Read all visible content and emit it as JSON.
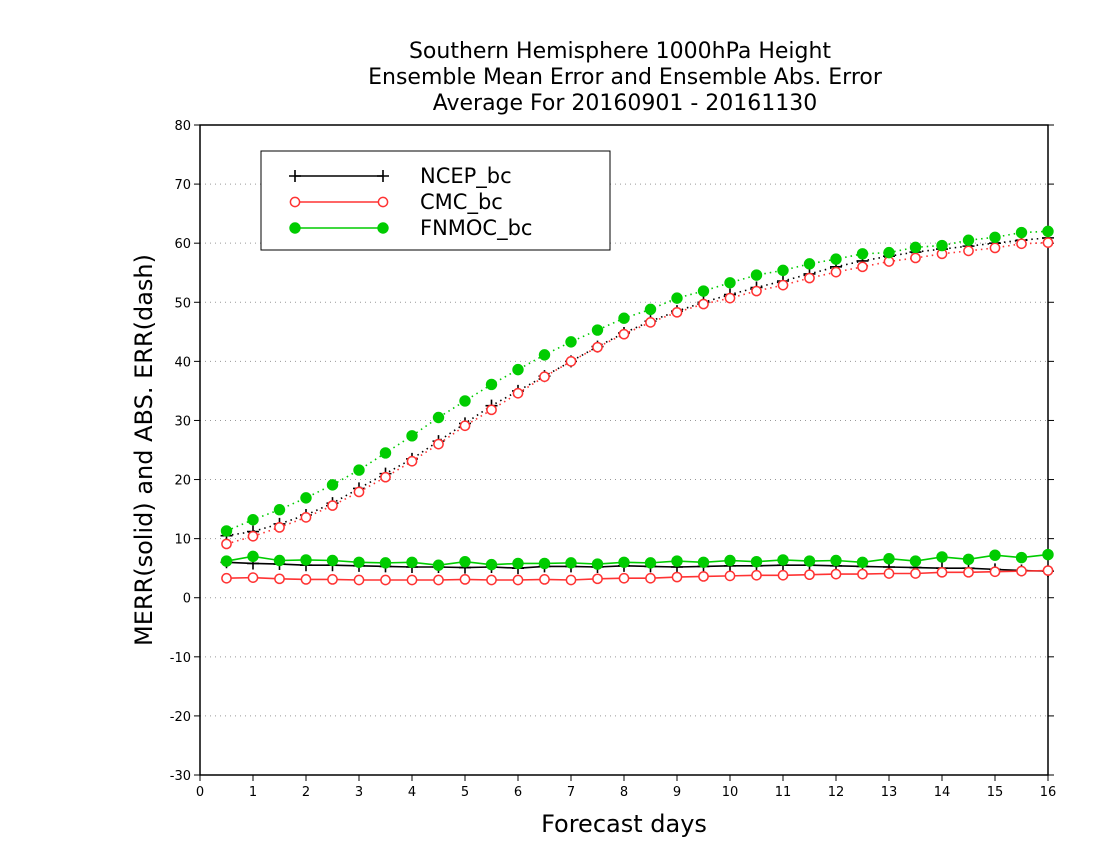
{
  "chart_data": {
    "type": "line",
    "title_lines": [
      "Southern Hemisphere 1000hPa Height",
      "Ensemble Mean Error and Ensemble Abs. Error",
      "Average For 20160901 - 20161130"
    ],
    "xlabel": "Forecast days",
    "ylabel": "MERR(solid) and ABS. ERR(dash)",
    "xlim": [
      0,
      16
    ],
    "ylim": [
      -30,
      80
    ],
    "xticks": [
      0,
      1,
      2,
      3,
      4,
      5,
      6,
      7,
      8,
      9,
      10,
      11,
      12,
      13,
      14,
      15,
      16
    ],
    "yticks": [
      -30,
      -20,
      -10,
      0,
      10,
      20,
      30,
      40,
      50,
      60,
      70,
      80
    ],
    "grid": "horizontal dotted",
    "legend_position": "top-left",
    "x": [
      0.5,
      1,
      1.5,
      2,
      2.5,
      3,
      3.5,
      4,
      4.5,
      5,
      5.5,
      6,
      6.5,
      7,
      7.5,
      8,
      8.5,
      9,
      9.5,
      10,
      10.5,
      11,
      11.5,
      12,
      12.5,
      13,
      13.5,
      14,
      14.5,
      15,
      15.5,
      16
    ],
    "series": [
      {
        "name": "NCEP_bc",
        "color": "#000000",
        "marker": "plus",
        "merr": [
          6.0,
          5.8,
          5.7,
          5.5,
          5.5,
          5.4,
          5.3,
          5.2,
          5.2,
          5.1,
          5.2,
          5.0,
          5.3,
          5.3,
          5.2,
          5.4,
          5.3,
          5.2,
          5.3,
          5.4,
          5.4,
          5.5,
          5.5,
          5.4,
          5.3,
          5.2,
          5.1,
          5.0,
          5.0,
          4.8,
          4.6,
          4.5
        ],
        "abs_err": [
          10.5,
          11.2,
          12.5,
          14.0,
          16.0,
          18.5,
          21.0,
          23.5,
          26.5,
          29.5,
          32.5,
          35.0,
          37.5,
          40.0,
          42.5,
          44.8,
          46.8,
          48.5,
          50.0,
          51.3,
          52.5,
          53.6,
          54.8,
          56.0,
          57.0,
          57.8,
          58.5,
          59.0,
          59.5,
          60.0,
          60.5,
          60.9
        ]
      },
      {
        "name": "CMC_bc",
        "color": "#ff3333",
        "marker": "open-circle",
        "merr": [
          3.3,
          3.4,
          3.2,
          3.1,
          3.1,
          3.0,
          3.0,
          3.0,
          3.0,
          3.1,
          3.0,
          3.0,
          3.1,
          3.0,
          3.2,
          3.3,
          3.3,
          3.5,
          3.6,
          3.7,
          3.8,
          3.8,
          3.9,
          4.0,
          4.0,
          4.1,
          4.1,
          4.3,
          4.3,
          4.4,
          4.5,
          4.6
        ],
        "abs_err": [
          9.1,
          10.4,
          11.9,
          13.6,
          15.6,
          17.9,
          20.4,
          23.1,
          26.0,
          29.1,
          31.8,
          34.6,
          37.4,
          40.0,
          42.4,
          44.6,
          46.6,
          48.3,
          49.7,
          50.7,
          51.9,
          52.9,
          54.1,
          55.1,
          56.0,
          56.9,
          57.5,
          58.2,
          58.7,
          59.2,
          59.9,
          60.1
        ]
      },
      {
        "name": "FNMOC_bc",
        "color": "#00cc00",
        "marker": "filled-circle",
        "merr": [
          6.2,
          7.0,
          6.3,
          6.4,
          6.3,
          6.0,
          5.9,
          6.0,
          5.5,
          6.1,
          5.6,
          5.8,
          5.8,
          5.9,
          5.7,
          6.0,
          5.9,
          6.2,
          6.0,
          6.3,
          6.1,
          6.4,
          6.2,
          6.3,
          6.0,
          6.6,
          6.2,
          6.9,
          6.5,
          7.2,
          6.8,
          7.3
        ],
        "abs_err": [
          11.3,
          13.2,
          14.9,
          16.9,
          19.1,
          21.6,
          24.5,
          27.4,
          30.5,
          33.3,
          36.1,
          38.6,
          41.1,
          43.3,
          45.3,
          47.3,
          48.8,
          50.7,
          51.9,
          53.3,
          54.6,
          55.4,
          56.5,
          57.3,
          58.2,
          58.4,
          59.3,
          59.6,
          60.5,
          61.0,
          61.8,
          62.0
        ]
      }
    ]
  }
}
